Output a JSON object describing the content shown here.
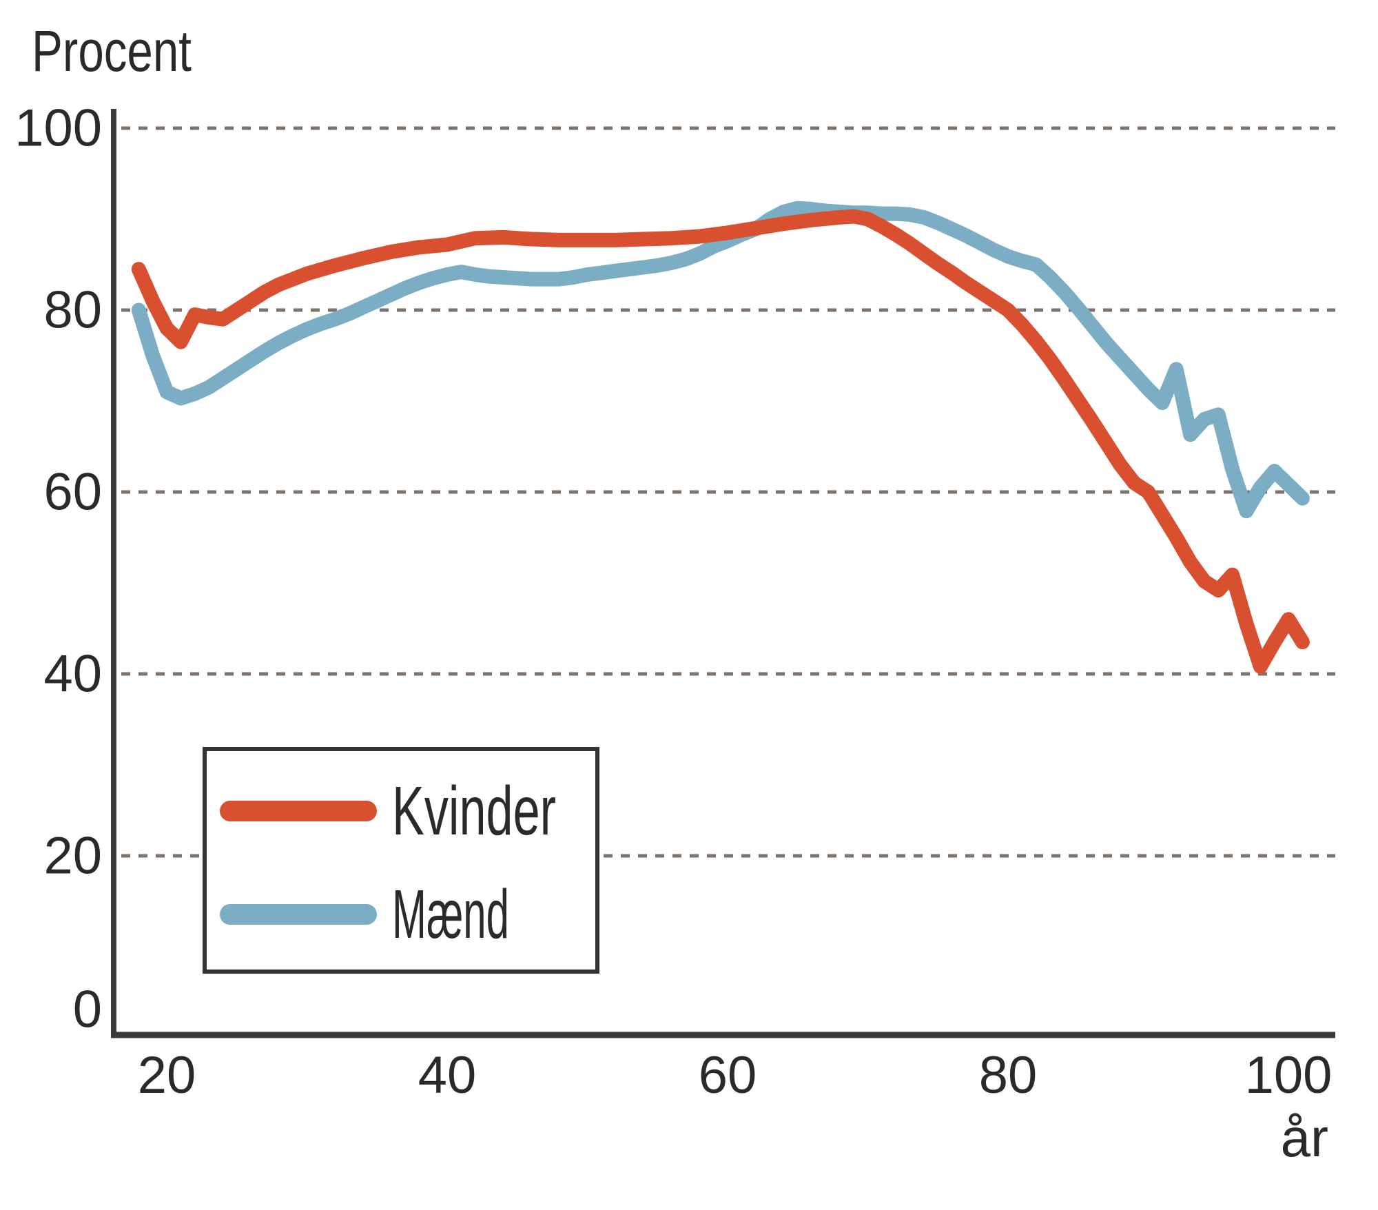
{
  "labels": {
    "y_axis_unit": "Procent",
    "x_axis_unit": "år"
  },
  "colors": {
    "background": "#ffffff",
    "axis": "#3a3a3a",
    "grid": "#7c736c",
    "text": "#2c2a29",
    "legend_border": "#333333",
    "kvinder": "#d8502f",
    "maend": "#7badc4"
  },
  "chart_data": {
    "type": "line",
    "title": "",
    "ylabel": "Procent",
    "xlabel": "år",
    "x_ticks": [
      20,
      40,
      60,
      80,
      100
    ],
    "y_ticks": [
      0,
      20,
      40,
      60,
      80,
      100
    ],
    "xlim": [
      16,
      103
    ],
    "ylim": [
      0,
      100
    ],
    "grid": "horizontal dashed lines at 20, 40, 60, 80, 100",
    "legend_position": "lower-left box",
    "series": [
      {
        "name": "Kvinder",
        "color": "#d8502f",
        "points": [
          [
            18,
            84.5
          ],
          [
            19,
            81
          ],
          [
            20,
            78
          ],
          [
            21,
            76.5
          ],
          [
            22,
            79.5
          ],
          [
            23,
            79.2
          ],
          [
            24,
            79
          ],
          [
            25,
            80
          ],
          [
            26,
            81
          ],
          [
            27,
            82
          ],
          [
            28,
            82.8
          ],
          [
            29,
            83.4
          ],
          [
            30,
            84
          ],
          [
            32,
            84.9
          ],
          [
            34,
            85.7
          ],
          [
            36,
            86.4
          ],
          [
            38,
            86.9
          ],
          [
            40,
            87.2
          ],
          [
            42,
            87.9
          ],
          [
            44,
            88
          ],
          [
            46,
            87.8
          ],
          [
            48,
            87.7
          ],
          [
            50,
            87.7
          ],
          [
            52,
            87.7
          ],
          [
            54,
            87.8
          ],
          [
            56,
            87.9
          ],
          [
            58,
            88.1
          ],
          [
            60,
            88.5
          ],
          [
            62,
            89
          ],
          [
            64,
            89.5
          ],
          [
            66,
            89.9
          ],
          [
            68,
            90.2
          ],
          [
            69,
            90.3
          ],
          [
            70,
            90
          ],
          [
            71,
            89.2
          ],
          [
            72,
            88.3
          ],
          [
            73,
            87.3
          ],
          [
            74,
            86.2
          ],
          [
            75,
            85.1
          ],
          [
            76,
            84.1
          ],
          [
            77,
            83
          ],
          [
            78,
            82
          ],
          [
            79,
            81
          ],
          [
            80,
            80
          ],
          [
            81,
            78.4
          ],
          [
            82,
            76.6
          ],
          [
            83,
            74.6
          ],
          [
            84,
            72.4
          ],
          [
            85,
            70.1
          ],
          [
            86,
            67.8
          ],
          [
            87,
            65.4
          ],
          [
            88,
            63
          ],
          [
            89,
            61
          ],
          [
            90,
            60
          ],
          [
            91,
            57.5
          ],
          [
            92,
            55
          ],
          [
            93,
            52.3
          ],
          [
            94,
            50.2
          ],
          [
            95,
            49.2
          ],
          [
            96,
            50.9
          ],
          [
            97,
            45.5
          ],
          [
            98,
            40.8
          ],
          [
            99,
            43.5
          ],
          [
            100,
            46
          ],
          [
            101,
            43.5
          ]
        ]
      },
      {
        "name": "Mænd",
        "color": "#7badc4",
        "points": [
          [
            18,
            80
          ],
          [
            19,
            75
          ],
          [
            20,
            71
          ],
          [
            21,
            70.3
          ],
          [
            22,
            70.8
          ],
          [
            23,
            71.5
          ],
          [
            24,
            72.5
          ],
          [
            25,
            73.5
          ],
          [
            26,
            74.5
          ],
          [
            27,
            75.5
          ],
          [
            28,
            76.4
          ],
          [
            29,
            77.2
          ],
          [
            30,
            77.9
          ],
          [
            31,
            78.5
          ],
          [
            32,
            79
          ],
          [
            33,
            79.6
          ],
          [
            34,
            80.3
          ],
          [
            35,
            81
          ],
          [
            36,
            81.7
          ],
          [
            37,
            82.4
          ],
          [
            38,
            83
          ],
          [
            39,
            83.5
          ],
          [
            40,
            83.9
          ],
          [
            41,
            84.2
          ],
          [
            42,
            83.9
          ],
          [
            43,
            83.7
          ],
          [
            44,
            83.6
          ],
          [
            45,
            83.5
          ],
          [
            46,
            83.4
          ],
          [
            47,
            83.4
          ],
          [
            48,
            83.4
          ],
          [
            49,
            83.6
          ],
          [
            50,
            83.9
          ],
          [
            51,
            84.1
          ],
          [
            52,
            84.3
          ],
          [
            53,
            84.5
          ],
          [
            54,
            84.7
          ],
          [
            55,
            84.9
          ],
          [
            56,
            85.2
          ],
          [
            57,
            85.6
          ],
          [
            58,
            86.2
          ],
          [
            59,
            87
          ],
          [
            60,
            87.6
          ],
          [
            61,
            88.3
          ],
          [
            62,
            88.9
          ],
          [
            63,
            90
          ],
          [
            64,
            90.8
          ],
          [
            65,
            91.2
          ],
          [
            66,
            91.1
          ],
          [
            67,
            90.9
          ],
          [
            68,
            90.8
          ],
          [
            69,
            90.7
          ],
          [
            70,
            90.7
          ],
          [
            71,
            90.6
          ],
          [
            72,
            90.6
          ],
          [
            73,
            90.5
          ],
          [
            74,
            90.2
          ],
          [
            75,
            89.6
          ],
          [
            76,
            88.9
          ],
          [
            77,
            88.2
          ],
          [
            78,
            87.4
          ],
          [
            79,
            86.6
          ],
          [
            80,
            85.9
          ],
          [
            81,
            85.4
          ],
          [
            82,
            85
          ],
          [
            83,
            83.6
          ],
          [
            84,
            82
          ],
          [
            85,
            80.2
          ],
          [
            86,
            78.3
          ],
          [
            87,
            76.4
          ],
          [
            88,
            74.7
          ],
          [
            89,
            73
          ],
          [
            90,
            71.3
          ],
          [
            91,
            69.8
          ],
          [
            92,
            73.5
          ],
          [
            93,
            66.3
          ],
          [
            94,
            68
          ],
          [
            95,
            68.5
          ],
          [
            96,
            62.5
          ],
          [
            97,
            57.9
          ],
          [
            98,
            60.5
          ],
          [
            99,
            62.3
          ],
          [
            100,
            60.8
          ],
          [
            101,
            59.3
          ]
        ]
      }
    ]
  }
}
